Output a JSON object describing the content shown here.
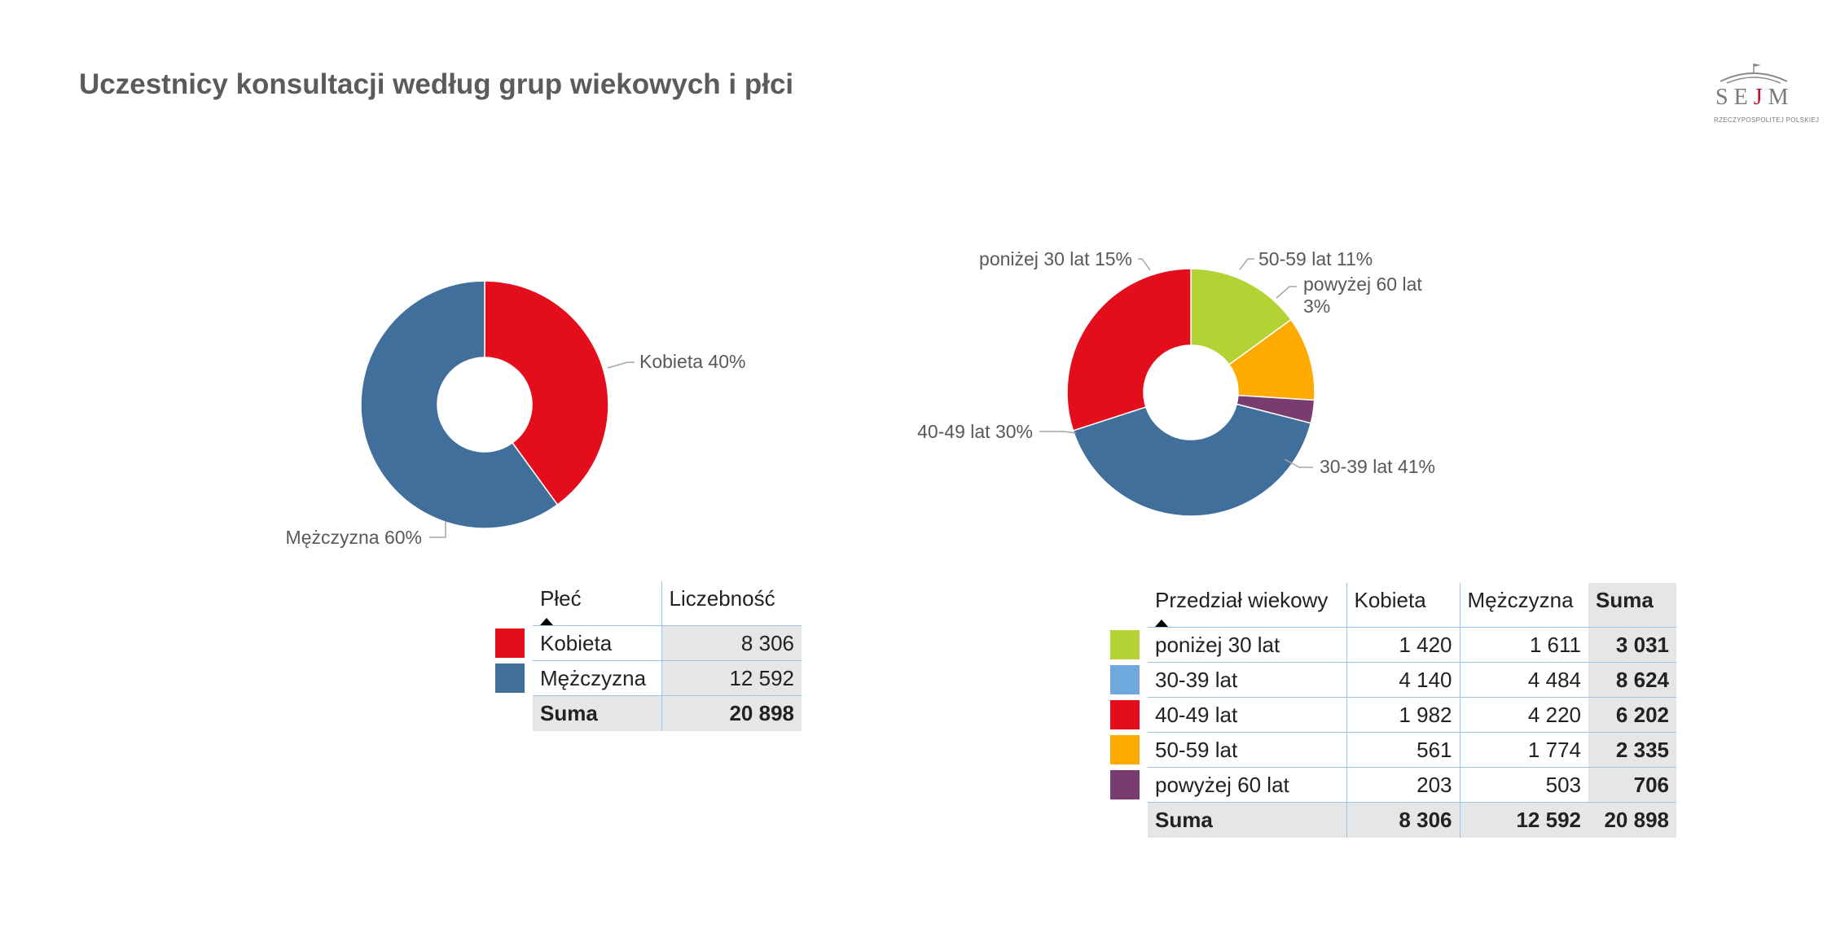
{
  "title": "Uczestnicy konsultacji według grup wiekowych i płci",
  "logo": {
    "word_a": "SE",
    "word_j": "J",
    "word_b": "M",
    "sub": "RZECZYPOSPOLITEJ POLSKIEJ"
  },
  "chart_data": [
    {
      "type": "pie",
      "variant": "donut",
      "title": "",
      "slices": [
        {
          "label": "Kobieta",
          "value": 40,
          "color": "#e30d1b"
        },
        {
          "label": "Mężczyzna",
          "value": 60,
          "color": "#3f6f9a"
        }
      ]
    },
    {
      "type": "pie",
      "variant": "donut",
      "title": "",
      "slices": [
        {
          "label": "poniżej 30 lat",
          "value": 15,
          "color": "#b3d334"
        },
        {
          "label": "50-59 lat",
          "value": 11,
          "color": "#ffaa00"
        },
        {
          "label": "powyżej 60 lat",
          "value": 3,
          "color": "#7a3b6e"
        },
        {
          "label": "30-39 lat",
          "value": 41,
          "color": "#3f6f9a"
        },
        {
          "label": "40-49 lat",
          "value": 30,
          "color": "#e30d1b"
        }
      ]
    },
    {
      "type": "table",
      "title": "",
      "columns": [
        "Płeć",
        "Liczebność"
      ],
      "rows": [
        {
          "label": "Kobieta",
          "values": [
            "8 306"
          ],
          "color": "#e30d1b"
        },
        {
          "label": "Mężczyzna",
          "values": [
            "12 592"
          ],
          "color": "#3f6f9a"
        }
      ],
      "total": {
        "label": "Suma",
        "values": [
          "20 898"
        ]
      }
    },
    {
      "type": "table",
      "title": "",
      "columns": [
        "Przedział wiekowy",
        "Kobieta",
        "Mężczyzna",
        "Suma"
      ],
      "rows": [
        {
          "label": "poniżej 30 lat",
          "values": [
            "1 420",
            "1 611",
            "3 031"
          ],
          "color": "#b3d334"
        },
        {
          "label": "30-39 lat",
          "values": [
            "4 140",
            "4 484",
            "8 624"
          ],
          "color": "#6fa8dc"
        },
        {
          "label": "40-49 lat",
          "values": [
            "1 982",
            "4 220",
            "6 202"
          ],
          "color": "#e30d1b"
        },
        {
          "label": "50-59 lat",
          "values": [
            "561",
            "1 774",
            "2 335"
          ],
          "color": "#ffaa00"
        },
        {
          "label": "powyżej 60 lat",
          "values": [
            "203",
            "503",
            "706"
          ],
          "color": "#7a3b6e"
        }
      ],
      "total": {
        "label": "Suma",
        "values": [
          "8 306",
          "12 592",
          "20 898"
        ]
      }
    }
  ],
  "pie_labels": {
    "gender": {
      "kobieta": "Kobieta 40%",
      "mezczyzna": "Mężczyzna 60%"
    },
    "age": {
      "ponizej30": "poniżej 30 lat 15%",
      "g5059": "50-59 lat 11%",
      "powyzej60_line1": "powyżej 60 lat",
      "powyzej60_line2": "3%",
      "g3039": "30-39 lat 41%",
      "g4049": "40-49 lat 30%"
    }
  }
}
